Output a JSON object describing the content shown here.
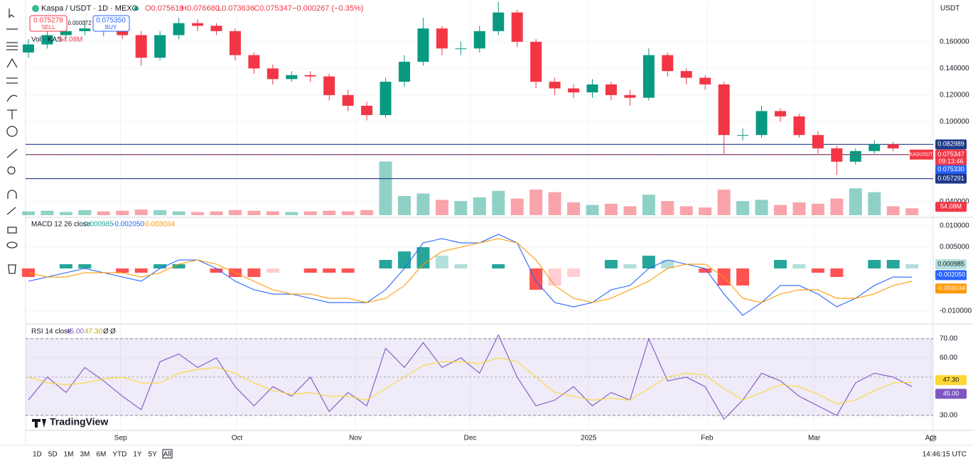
{
  "header": {
    "symbol": "Kaspa / USDT · 1D · MEXC",
    "open": "O0.075618",
    "high": "H0.076680",
    "low": "L0.073636",
    "close": "C0.075347",
    "change": "−0.000267 (−0.35%)",
    "sell_price": "0.075278",
    "sell": "SELL",
    "spread": "0.000072",
    "buy_price": "0.075350",
    "buy": "BUY",
    "currency": "USDT",
    "countdown": "09:13:46",
    "ticker": "KASUSDT"
  },
  "footer": {
    "ranges": [
      "1D",
      "5D",
      "1M",
      "3M",
      "6M",
      "YTD",
      "1Y",
      "5Y",
      "All"
    ],
    "clock": "14:46:15 UTC",
    "logo": "TradingView"
  },
  "chart_data": [
    {
      "type": "candlestick",
      "xlim": [
        -0.15,
        48.13
      ],
      "xticks": [
        {
          "value": 4.9,
          "label": "Sep"
        },
        {
          "value": 11.1,
          "label": "Oct"
        },
        {
          "value": 17.4,
          "label": "Nov"
        },
        {
          "value": 23.5,
          "label": "Dec"
        },
        {
          "value": 29.8,
          "label": "2025"
        },
        {
          "value": 36.1,
          "label": "Feb"
        },
        {
          "value": 41.8,
          "label": "Mar"
        },
        {
          "value": 48.0,
          "label": "Apr"
        }
      ],
      "ylim": [
        0.0288,
        0.1903
      ],
      "yticks": [
        {
          "value": 0.16,
          "label": "0.160000"
        },
        {
          "value": 0.14,
          "label": "0.140000"
        },
        {
          "value": 0.12,
          "label": "0.120000"
        },
        {
          "value": 0.1,
          "label": "0.100000"
        },
        {
          "value": 0.04,
          "label": "0.040000"
        }
      ],
      "grid": true,
      "up_color": "#089981",
      "down_color": "#f23645",
      "open": [
        0.152,
        0.158,
        0.165,
        0.168,
        0.17,
        0.168,
        0.165,
        0.148,
        0.165,
        0.174,
        0.172,
        0.168,
        0.15,
        0.14,
        0.132,
        0.135,
        0.134,
        0.12,
        0.112,
        0.105,
        0.13,
        0.145,
        0.17,
        0.155,
        0.155,
        0.168,
        0.182,
        0.16,
        0.13,
        0.125,
        0.122,
        0.128,
        0.12,
        0.118,
        0.15,
        0.138,
        0.133,
        0.128,
        0.09,
        0.09,
        0.108,
        0.104,
        0.09,
        0.08,
        0.07,
        0.078,
        0.083,
        0.075618
      ],
      "high": [
        0.162,
        0.17,
        0.172,
        0.176,
        0.174,
        0.171,
        0.168,
        0.168,
        0.178,
        0.177,
        0.174,
        0.17,
        0.152,
        0.143,
        0.138,
        0.138,
        0.136,
        0.124,
        0.115,
        0.133,
        0.15,
        0.178,
        0.172,
        0.16,
        0.172,
        0.19,
        0.184,
        0.162,
        0.133,
        0.128,
        0.132,
        0.13,
        0.124,
        0.155,
        0.152,
        0.14,
        0.135,
        0.13,
        0.095,
        0.112,
        0.11,
        0.106,
        0.093,
        0.082,
        0.08,
        0.086,
        0.085,
        0.07668
      ],
      "low": [
        0.148,
        0.155,
        0.162,
        0.165,
        0.164,
        0.162,
        0.142,
        0.146,
        0.162,
        0.168,
        0.165,
        0.146,
        0.136,
        0.128,
        0.13,
        0.13,
        0.116,
        0.108,
        0.101,
        0.103,
        0.126,
        0.142,
        0.15,
        0.15,
        0.152,
        0.165,
        0.156,
        0.125,
        0.12,
        0.118,
        0.118,
        0.116,
        0.112,
        0.116,
        0.134,
        0.128,
        0.124,
        0.076,
        0.086,
        0.088,
        0.1,
        0.088,
        0.076,
        0.06,
        0.068,
        0.076,
        0.078,
        0.073636
      ],
      "close": [
        0.158,
        0.165,
        0.168,
        0.17,
        0.168,
        0.165,
        0.148,
        0.165,
        0.174,
        0.172,
        0.168,
        0.15,
        0.14,
        0.132,
        0.135,
        0.134,
        0.12,
        0.112,
        0.105,
        0.13,
        0.145,
        0.17,
        0.155,
        0.155,
        0.168,
        0.182,
        0.16,
        0.13,
        0.125,
        0.122,
        0.128,
        0.12,
        0.118,
        0.15,
        0.138,
        0.133,
        0.128,
        0.09,
        0.09,
        0.108,
        0.104,
        0.09,
        0.08,
        0.07,
        0.078,
        0.083,
        0.08,
        0.075347
      ],
      "hlines": [
        {
          "value": 0.082989,
          "label": "0.082989"
        },
        {
          "value": 0.07533,
          "label": "0.075330"
        },
        {
          "value": 0.057291,
          "label": "0.057291"
        }
      ],
      "hline_color": "#1e3a8a",
      "volume_name": "Vol · KAS",
      "volume_label": "54.08M",
      "volume_ylim": [
        0,
        500
      ],
      "volume": [
        30,
        35,
        25,
        40,
        30,
        35,
        45,
        40,
        30,
        25,
        30,
        40,
        35,
        30,
        25,
        30,
        35,
        30,
        40,
        420,
        150,
        170,
        120,
        110,
        140,
        190,
        130,
        200,
        180,
        100,
        80,
        90,
        70,
        160,
        110,
        70,
        60,
        200,
        110,
        120,
        80,
        100,
        90,
        130,
        210,
        180,
        70,
        54.08
      ]
    },
    {
      "type": "macd",
      "name": "MACD 12 26 close",
      "ylim": [
        -0.01283,
        0.01167
      ],
      "yticks": [
        {
          "value": 0.01,
          "label": "0.010000"
        },
        {
          "value": 0.005,
          "label": "0.005000"
        },
        {
          "value": -0.01,
          "label": "-0.010000"
        }
      ],
      "hist_colors": [
        "#26a69a",
        "#b2dfdb",
        "#ff5252",
        "#ffcdd2"
      ],
      "legend": [
        "0.000985",
        "-0.002050",
        "-0.003034"
      ],
      "histogram": [
        -0.002,
        0,
        0.001,
        0.001,
        0,
        -0.001,
        -0.001,
        0.001,
        0.001,
        0,
        -0.001,
        -0.002,
        -0.002,
        -0.001,
        0,
        -0.001,
        -0.001,
        -0.001,
        0,
        0.002,
        0.004,
        0.005,
        0.003,
        0.001,
        0,
        0.001,
        0,
        -0.005,
        -0.004,
        -0.002,
        0,
        0.002,
        0.001,
        0.003,
        0.002,
        0,
        -0.001,
        -0.004,
        -0.004,
        0,
        0.002,
        0.001,
        -0.001,
        -0.002,
        0,
        0.002,
        0.002,
        0.000985
      ],
      "series": [
        {
          "color": "#2962ff",
          "values": [
            -0.003,
            -0.002,
            -0.001,
            0,
            -0.001,
            -0.002,
            -0.003,
            0,
            0.002,
            0.002,
            0,
            -0.003,
            -0.005,
            -0.006,
            -0.006,
            -0.007,
            -0.008,
            -0.008,
            -0.008,
            -0.005,
            0,
            0.006,
            0.007,
            0.006,
            0.006,
            0.008,
            0.006,
            -0.003,
            -0.008,
            -0.009,
            -0.008,
            -0.005,
            -0.004,
            0,
            0.002,
            0.001,
            0,
            -0.006,
            -0.011,
            -0.008,
            -0.004,
            -0.004,
            -0.006,
            -0.009,
            -0.007,
            -0.004,
            -0.002,
            -0.00205
          ]
        },
        {
          "color": "#ff9800",
          "values": [
            -0.001,
            -0.002,
            -0.002,
            -0.001,
            -0.001,
            -0.001,
            -0.002,
            -0.001,
            0.001,
            0.002,
            0.001,
            -0.001,
            -0.003,
            -0.005,
            -0.006,
            -0.006,
            -0.007,
            -0.007,
            -0.008,
            -0.007,
            -0.004,
            0.001,
            0.004,
            0.005,
            0.006,
            0.007,
            0.006,
            0.002,
            -0.004,
            -0.007,
            -0.008,
            -0.007,
            -0.005,
            -0.003,
            0,
            0.001,
            0.001,
            -0.002,
            -0.007,
            -0.008,
            -0.006,
            -0.005,
            -0.005,
            -0.007,
            -0.007,
            -0.006,
            -0.004,
            -0.003034
          ]
        }
      ]
    },
    {
      "type": "rsi",
      "name": "RSI 14 close",
      "ylim": [
        22.6,
        77.0
      ],
      "yticks": [
        {
          "value": 70,
          "label": "70.00"
        },
        {
          "value": 60,
          "label": "60.00"
        },
        {
          "value": 30,
          "label": "30.00"
        }
      ],
      "band": [
        30,
        70
      ],
      "mid": 50,
      "band_color": "#7e57c2",
      "legend": [
        "45.00",
        "47.30",
        "Ø",
        "Ø"
      ],
      "series": [
        {
          "color": "#7e57c2",
          "values": [
            38,
            50,
            42,
            55,
            48,
            40,
            33,
            58,
            62,
            55,
            60,
            45,
            35,
            45,
            40,
            50,
            32,
            42,
            35,
            65,
            55,
            68,
            55,
            60,
            52,
            72,
            50,
            35,
            38,
            45,
            35,
            42,
            38,
            70,
            48,
            50,
            45,
            28,
            38,
            52,
            48,
            40,
            35,
            30,
            47,
            52,
            50,
            45
          ]
        },
        {
          "color": "#fdd835",
          "values": [
            50,
            47,
            46,
            47,
            49,
            50,
            47,
            47,
            52,
            54,
            55,
            52,
            47,
            43,
            41,
            42,
            40,
            40,
            38,
            44,
            50,
            56,
            58,
            58,
            57,
            60,
            58,
            50,
            42,
            40,
            38,
            39,
            38,
            44,
            50,
            52,
            51,
            44,
            38,
            42,
            46,
            45,
            41,
            36,
            38,
            43,
            47,
            47.3
          ]
        }
      ]
    }
  ]
}
